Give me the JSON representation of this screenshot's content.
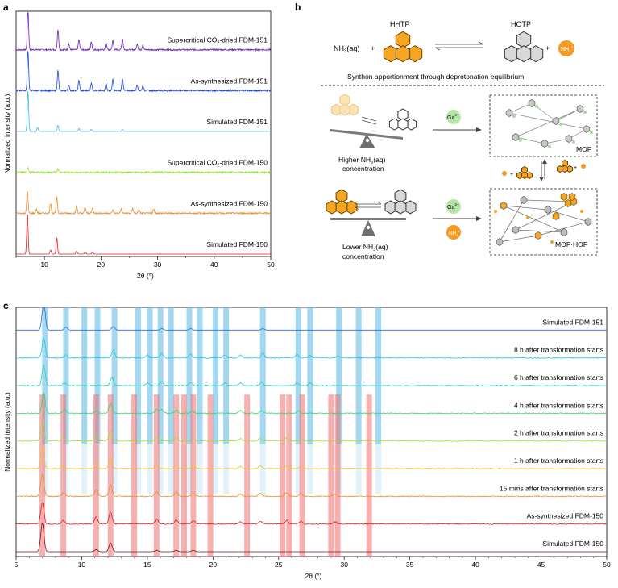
{
  "panel_labels": {
    "a": "a",
    "b": "b",
    "c": "c"
  },
  "colors": {
    "purple": "#6a1fc2",
    "blue": "#1f47d6",
    "skyblue": "#3fb5e8",
    "lime": "#9be03a",
    "orange": "#f08a24",
    "red": "#e5171f",
    "gold": "#f5a623",
    "hex_gold_stroke": "#8a5a00",
    "grey_hex": "#d9d9d9",
    "teal": "#19c9d6",
    "cyan_band": "#4fb6e3",
    "red_band": "#ee6c6c"
  },
  "chart_data": [
    {
      "type": "line",
      "panel": "a",
      "xlabel": "2θ (°)",
      "ylabel": "Normalized intensity (a.u.)",
      "xlim": [
        5,
        50
      ],
      "xticks": [
        10,
        20,
        30,
        40,
        50
      ],
      "series": [
        {
          "name": "Supercritical CO2-dried FDM-151",
          "label_main": "Supercritical CO",
          "label_sub": "2",
          "label_tail": "-dried FDM-151",
          "color": "#6a1fc2",
          "noise": 0.9,
          "peaks": [
            [
              7.1,
              40
            ],
            [
              12.4,
              20
            ],
            [
              14.3,
              6
            ],
            [
              16.1,
              10
            ],
            [
              18.3,
              8
            ],
            [
              20.9,
              7
            ],
            [
              22.1,
              9
            ],
            [
              23.8,
              11
            ],
            [
              26.4,
              6
            ],
            [
              27.4,
              5
            ]
          ]
        },
        {
          "name": "As-synthesized FDM-151",
          "label_main": "As-synthesized FDM-151",
          "label_sub": "",
          "label_tail": "",
          "color": "#1f47d6",
          "noise": 0.9,
          "peaks": [
            [
              7.1,
              40
            ],
            [
              12.4,
              20
            ],
            [
              14.3,
              6
            ],
            [
              16.1,
              10
            ],
            [
              18.3,
              8
            ],
            [
              20.9,
              7
            ],
            [
              22.1,
              11
            ],
            [
              23.8,
              12
            ],
            [
              26.4,
              6
            ],
            [
              27.4,
              5
            ]
          ]
        },
        {
          "name": "Simulated FDM-151",
          "label_main": "Simulated FDM-151",
          "label_sub": "",
          "label_tail": "",
          "color": "#3fb5e8",
          "noise": 0.0,
          "peaks": [
            [
              7.1,
              40
            ],
            [
              8.8,
              4
            ],
            [
              12.4,
              6
            ],
            [
              16.1,
              3
            ],
            [
              18.3,
              2
            ],
            [
              23.8,
              2
            ]
          ]
        },
        {
          "name": "Supercritical CO2-dried FDM-150",
          "label_main": "Supercritical CO",
          "label_sub": "2",
          "label_tail": "-dried FDM-150",
          "color": "#9be03a",
          "noise": 1.0,
          "peaks": [
            [
              7.1,
              5
            ],
            [
              12.4,
              4
            ]
          ]
        },
        {
          "name": "As-synthesized FDM-150",
          "label_main": "As-synthesized FDM-150",
          "label_sub": "",
          "label_tail": "",
          "color": "#f08a24",
          "noise": 0.9,
          "peaks": [
            [
              7.0,
              22
            ],
            [
              8.6,
              4
            ],
            [
              11.1,
              10
            ],
            [
              12.2,
              16
            ],
            [
              15.7,
              7
            ],
            [
              17.2,
              6
            ],
            [
              18.5,
              5
            ],
            [
              22.1,
              3
            ],
            [
              23.6,
              4
            ],
            [
              25.6,
              5
            ],
            [
              26.7,
              4
            ],
            [
              29.3,
              4
            ]
          ]
        },
        {
          "name": "Simulated FDM-150",
          "label_main": "Simulated FDM-150",
          "label_sub": "",
          "label_tail": "",
          "color": "#e5171f",
          "noise": 0.0,
          "peaks": [
            [
              7.0,
              40
            ],
            [
              11.1,
              4
            ],
            [
              12.2,
              16
            ],
            [
              15.7,
              3
            ],
            [
              17.2,
              2
            ],
            [
              18.5,
              2
            ]
          ]
        }
      ]
    },
    {
      "type": "line",
      "panel": "c",
      "xlabel": "2θ (°)",
      "ylabel": "Normalized intensity (a.u.)",
      "xlim": [
        5,
        50
      ],
      "xticks": [
        5,
        10,
        15,
        20,
        25,
        30,
        35,
        40,
        45,
        50
      ],
      "series": [
        {
          "name": "Simulated FDM-151",
          "color": "#1f6fd6",
          "noise": 0.0,
          "peaks": [
            [
              7.1,
              40
            ],
            [
              8.8,
              4
            ],
            [
              12.4,
              5
            ],
            [
              16.1,
              2
            ],
            [
              18.3,
              2
            ],
            [
              23.8,
              2
            ]
          ]
        },
        {
          "name": "8 h after transformation starts",
          "color": "#19c9e0",
          "noise": 0.8,
          "peaks": [
            [
              7.1,
              28
            ],
            [
              8.8,
              4
            ],
            [
              12.4,
              10
            ],
            [
              15.0,
              4
            ],
            [
              16.1,
              6
            ],
            [
              18.3,
              5
            ],
            [
              20.9,
              4
            ],
            [
              22.1,
              4
            ],
            [
              23.8,
              6
            ],
            [
              26.4,
              5
            ],
            [
              27.4,
              4
            ],
            [
              29.5,
              3
            ]
          ]
        },
        {
          "name": "6 h after transformation starts",
          "color": "#19d6b8",
          "noise": 0.8,
          "peaks": [
            [
              7.1,
              28
            ],
            [
              8.7,
              4
            ],
            [
              12.3,
              12
            ],
            [
              15.0,
              4
            ],
            [
              16.1,
              6
            ],
            [
              18.3,
              5
            ],
            [
              20.9,
              4
            ],
            [
              22.1,
              4
            ],
            [
              23.7,
              5
            ],
            [
              26.4,
              4
            ],
            [
              27.4,
              4
            ]
          ]
        },
        {
          "name": "4 h after transformation starts",
          "color": "#2fd96a",
          "noise": 0.8,
          "peaks": [
            [
              7.1,
              28
            ],
            [
              8.7,
              5
            ],
            [
              11.1,
              4
            ],
            [
              12.2,
              14
            ],
            [
              15.7,
              6
            ],
            [
              16.1,
              5
            ],
            [
              17.2,
              4
            ],
            [
              18.4,
              4
            ],
            [
              22.1,
              4
            ],
            [
              23.7,
              4
            ],
            [
              26.5,
              4
            ]
          ]
        },
        {
          "name": "2 h after transformation starts",
          "color": "#9ee030",
          "noise": 0.8,
          "peaks": [
            [
              7.0,
              28
            ],
            [
              8.6,
              5
            ],
            [
              11.1,
              6
            ],
            [
              12.2,
              14
            ],
            [
              15.7,
              6
            ],
            [
              17.2,
              5
            ],
            [
              18.5,
              4
            ],
            [
              22.1,
              3
            ],
            [
              23.6,
              4
            ],
            [
              25.6,
              4
            ],
            [
              26.7,
              3
            ]
          ]
        },
        {
          "name": "1 h after transformation starts",
          "color": "#f2c21c",
          "noise": 0.8,
          "peaks": [
            [
              7.0,
              30
            ],
            [
              8.6,
              5
            ],
            [
              11.1,
              7
            ],
            [
              12.2,
              15
            ],
            [
              15.7,
              6
            ],
            [
              17.2,
              5
            ],
            [
              18.5,
              5
            ],
            [
              22.1,
              3
            ],
            [
              23.6,
              4
            ],
            [
              25.6,
              4
            ],
            [
              26.7,
              3
            ]
          ]
        },
        {
          "name": "15 mins after transformation starts",
          "color": "#f08a24",
          "noise": 0.8,
          "peaks": [
            [
              7.0,
              30
            ],
            [
              8.6,
              5
            ],
            [
              11.1,
              9
            ],
            [
              12.2,
              16
            ],
            [
              15.7,
              7
            ],
            [
              17.2,
              6
            ],
            [
              18.5,
              5
            ],
            [
              22.1,
              3
            ],
            [
              23.6,
              4
            ],
            [
              25.6,
              5
            ],
            [
              26.7,
              4
            ],
            [
              29.3,
              3
            ]
          ]
        },
        {
          "name": "As-synthesized FDM-150",
          "color": "#e5171f",
          "noise": 0.8,
          "peaks": [
            [
              7.0,
              30
            ],
            [
              8.6,
              5
            ],
            [
              11.1,
              10
            ],
            [
              12.2,
              16
            ],
            [
              15.7,
              7
            ],
            [
              17.2,
              6
            ],
            [
              18.5,
              5
            ],
            [
              22.1,
              3
            ],
            [
              23.6,
              4
            ],
            [
              25.6,
              5
            ],
            [
              26.7,
              4
            ],
            [
              29.3,
              3
            ]
          ]
        },
        {
          "name": "Simulated FDM-150",
          "color": "#8a0f14",
          "noise": 0.0,
          "peaks": [
            [
              7.0,
              40
            ],
            [
              11.1,
              3
            ],
            [
              12.2,
              12
            ],
            [
              15.7,
              2
            ],
            [
              17.2,
              2
            ],
            [
              18.5,
              2
            ]
          ]
        }
      ],
      "blue_bands": [
        7.2,
        8.8,
        10.2,
        11.2,
        12.5,
        14.3,
        15.2,
        16.0,
        16.8,
        18.2,
        19.0,
        20.2,
        21.0,
        23.8,
        26.5,
        27.4,
        29.6,
        31.1,
        32.6
      ],
      "red_bands": [
        7.0,
        8.6,
        11.1,
        12.2,
        14.0,
        15.7,
        17.2,
        17.8,
        18.5,
        19.8,
        22.6,
        25.3,
        25.8,
        26.8,
        29.0,
        29.5,
        31.9
      ]
    }
  ],
  "panel_b": {
    "nh3_aq_top": "NH",
    "nh3_sub": "3",
    "aq_suffix": "(aq)",
    "plus1": "+",
    "plus2": "+",
    "hhtp_label": "HHTP",
    "hotp_label": "HOTP",
    "nh4_label": "NH",
    "nh4_sub": "4",
    "nh4_sup": "+",
    "caption": "Synthon apportionment through deprotonation equilibrium",
    "higher_line1": "Higher NH",
    "higher_sub": "3",
    "higher_tail": "(aq)",
    "higher_line2": "concentration",
    "lower_line1": "Lower NH",
    "lower_sub": "3",
    "lower_tail": "(aq)",
    "lower_line2": "concentration",
    "ga_label": "Ga",
    "ga_sup": "3+",
    "mof_label": "MOF",
    "mofhof_label": "MOF·HOF",
    "small_plus1": "+",
    "small_plus2": "+"
  }
}
